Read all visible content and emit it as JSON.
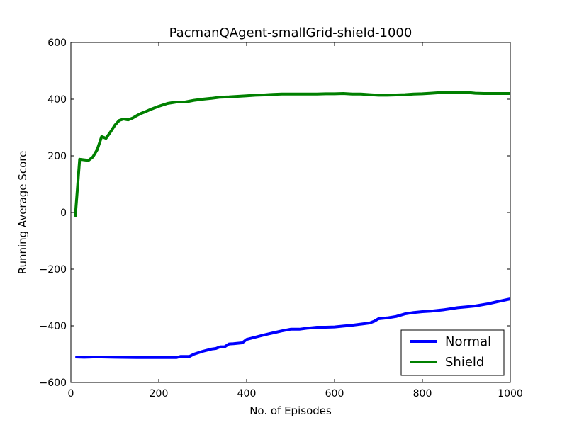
{
  "chart_data": {
    "type": "line",
    "title": "PacmanQAgent-smallGrid-shield-1000",
    "xlabel": "No. of Episodes",
    "ylabel": "Running Average Score",
    "xlim": [
      0,
      1000
    ],
    "ylim": [
      -600,
      600
    ],
    "xticks": [
      0,
      200,
      400,
      600,
      800,
      1000
    ],
    "yticks": [
      -600,
      -400,
      -200,
      0,
      200,
      400,
      600
    ],
    "xtick_labels": [
      "0",
      "200",
      "400",
      "600",
      "800",
      "1000"
    ],
    "ytick_labels": [
      "−600",
      "−400",
      "−200",
      "0",
      "200",
      "400",
      "600"
    ],
    "grid": false,
    "legend_position": "bottom-right",
    "series": [
      {
        "name": "Normal",
        "color": "#0000ff",
        "x": [
          10,
          30,
          50,
          70,
          100,
          150,
          200,
          240,
          250,
          260,
          270,
          280,
          300,
          320,
          330,
          340,
          350,
          360,
          370,
          390,
          400,
          420,
          440,
          460,
          480,
          500,
          520,
          540,
          560,
          580,
          600,
          620,
          640,
          660,
          680,
          690,
          700,
          720,
          740,
          760,
          780,
          800,
          820,
          850,
          880,
          900,
          920,
          950,
          970,
          1000
        ],
        "y": [
          -510,
          -511,
          -510,
          -510,
          -511,
          -512,
          -512,
          -512,
          -508,
          -508,
          -508,
          -500,
          -490,
          -482,
          -480,
          -474,
          -474,
          -464,
          -463,
          -460,
          -448,
          -440,
          -432,
          -425,
          -418,
          -412,
          -412,
          -408,
          -405,
          -405,
          -404,
          -401,
          -398,
          -394,
          -390,
          -384,
          -375,
          -372,
          -367,
          -358,
          -353,
          -350,
          -348,
          -343,
          -336,
          -333,
          -330,
          -322,
          -315,
          -305
        ]
      },
      {
        "name": "Shield",
        "color": "#008000",
        "x": [
          10,
          20,
          30,
          40,
          50,
          60,
          70,
          80,
          90,
          100,
          110,
          120,
          130,
          140,
          150,
          160,
          170,
          180,
          200,
          220,
          240,
          260,
          280,
          300,
          320,
          340,
          360,
          380,
          400,
          420,
          440,
          460,
          480,
          500,
          520,
          540,
          560,
          580,
          600,
          620,
          640,
          660,
          680,
          700,
          720,
          740,
          760,
          780,
          800,
          820,
          840,
          860,
          880,
          900,
          920,
          940,
          960,
          980,
          1000
        ],
        "y": [
          -15,
          188,
          186,
          184,
          196,
          222,
          268,
          262,
          284,
          308,
          325,
          330,
          327,
          333,
          342,
          350,
          356,
          363,
          375,
          385,
          390,
          390,
          396,
          400,
          403,
          407,
          408,
          410,
          412,
          414,
          415,
          417,
          418,
          418,
          418,
          418,
          418,
          419,
          419,
          420,
          418,
          418,
          416,
          414,
          414,
          415,
          416,
          418,
          419,
          421,
          423,
          425,
          425,
          424,
          421,
          420,
          420,
          420,
          420
        ]
      }
    ]
  }
}
